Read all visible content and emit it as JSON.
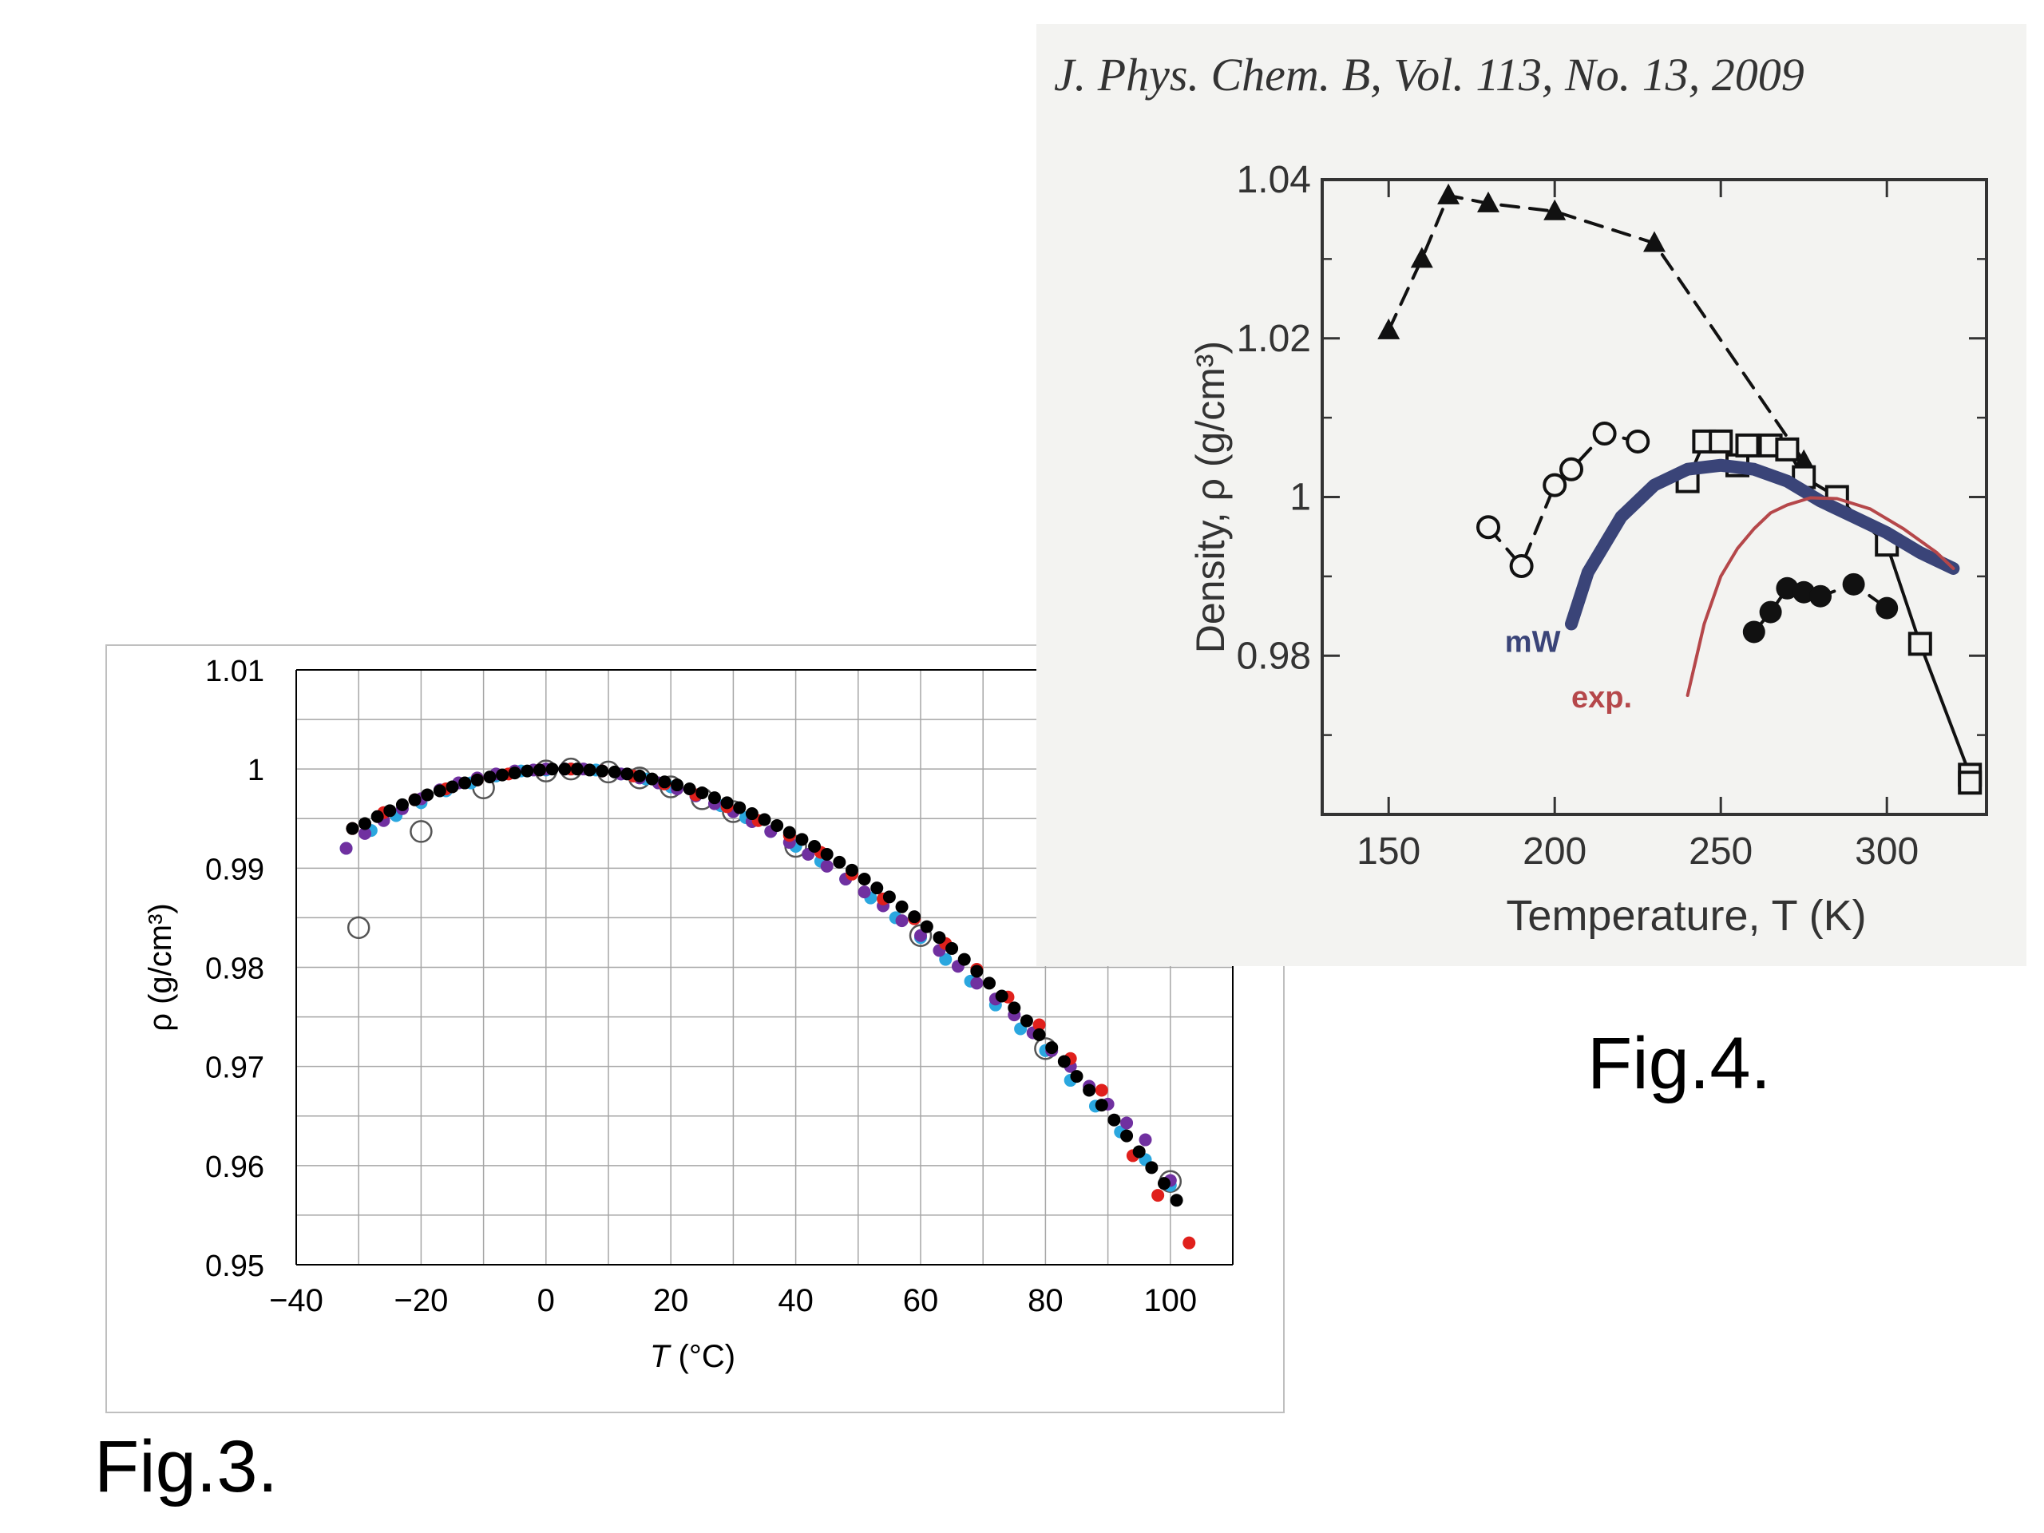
{
  "captions": {
    "fig3": "Fig.3.",
    "fig4": "Fig.4."
  },
  "journal_header": "J. Phys. Chem. B, Vol. 113, No. 13, 2009",
  "chart_data": [
    {
      "type": "scatter",
      "xlabel_var": "T",
      "xlabel_unit": " (°C)",
      "ylabel": "ρ (g/cm³)",
      "xlim": [
        -40,
        110
      ],
      "ylim": [
        0.95,
        1.01
      ],
      "x_ticks": [
        -40,
        -20,
        0,
        20,
        40,
        60,
        80,
        100
      ],
      "x_tick_labels": [
        "−40",
        "−20",
        "0",
        "20",
        "40",
        "60",
        "80",
        "100"
      ],
      "y_ticks": [
        0.95,
        0.96,
        0.97,
        0.98,
        0.99,
        1,
        1.01
      ],
      "y_tick_labels": [
        "0.95",
        "0.96",
        "0.97",
        "0.98",
        "0.99",
        "1",
        "1.01"
      ],
      "grid": true,
      "colors": {
        "red": "#e0201c",
        "black": "#000000",
        "cyan": "#2aa7df",
        "purple": "#7030a0",
        "open": "#555555"
      },
      "series": [
        {
          "marker": "open-circle",
          "color": "open",
          "x": [
            -30,
            -20,
            -10,
            0,
            4,
            10,
            15,
            20,
            25,
            30,
            40,
            60,
            80,
            100
          ],
          "y": [
            0.984,
            0.9937,
            0.9981,
            0.9998,
            1.0,
            0.9997,
            0.9991,
            0.9982,
            0.997,
            0.9957,
            0.9922,
            0.9832,
            0.9718,
            0.9584
          ]
        },
        {
          "marker": "filled",
          "color": "cyan",
          "x": [
            -32,
            -28,
            -24,
            -20,
            -16,
            -12,
            -8,
            -4,
            0,
            4,
            8,
            12,
            16,
            20,
            24,
            28,
            32,
            36,
            40,
            44,
            48,
            52,
            56,
            60,
            64,
            68,
            72,
            76,
            80,
            84,
            88,
            92,
            96,
            100
          ],
          "y": [
            0.992,
            0.9938,
            0.9953,
            0.9966,
            0.9978,
            0.9986,
            0.9993,
            0.9998,
            0.9999,
            1.0,
            0.9999,
            0.9995,
            0.999,
            0.9982,
            0.9973,
            0.9963,
            0.9951,
            0.9937,
            0.9922,
            0.9907,
            0.9889,
            0.987,
            0.985,
            0.983,
            0.9808,
            0.9786,
            0.9762,
            0.9738,
            0.9716,
            0.9686,
            0.966,
            0.9634,
            0.9606,
            0.958
          ]
        },
        {
          "marker": "filled",
          "color": "purple",
          "x": [
            -32,
            -29,
            -26,
            -23,
            -20,
            -17,
            -14,
            -11,
            -8,
            -5,
            -2,
            0,
            3,
            6,
            9,
            12,
            15,
            18,
            21,
            24,
            27,
            30,
            33,
            36,
            39,
            42,
            45,
            48,
            51,
            54,
            57,
            60,
            63,
            66,
            69,
            72,
            75,
            78,
            81,
            84,
            87,
            90,
            93,
            96,
            100
          ],
          "y": [
            0.992,
            0.9935,
            0.9948,
            0.996,
            0.997,
            0.9979,
            0.9986,
            0.9991,
            0.9995,
            0.9998,
            0.9999,
            1.0,
            1.0,
            1.0,
            0.9998,
            0.9995,
            0.9991,
            0.9986,
            0.998,
            0.9973,
            0.9965,
            0.9957,
            0.9947,
            0.9937,
            0.9926,
            0.9914,
            0.9902,
            0.9889,
            0.9876,
            0.9862,
            0.9847,
            0.9832,
            0.9817,
            0.9801,
            0.9784,
            0.9768,
            0.9752,
            0.9734,
            0.9716,
            0.97,
            0.968,
            0.9662,
            0.9643,
            0.9626,
            0.9585
          ]
        },
        {
          "marker": "filled",
          "color": "red",
          "x": [
            -31,
            -26,
            -21,
            -16,
            -11,
            -6,
            -1,
            4,
            9,
            14,
            19,
            24,
            29,
            34,
            39,
            44,
            49,
            54,
            59,
            64,
            69,
            74,
            79,
            84,
            89,
            94,
            98,
            103
          ],
          "y": [
            0.994,
            0.9956,
            0.9969,
            0.998,
            0.9989,
            0.9995,
            0.9999,
            1.0,
            0.9998,
            0.9993,
            0.9985,
            0.9974,
            0.9962,
            0.9948,
            0.9933,
            0.9916,
            0.9894,
            0.9869,
            0.9849,
            0.9824,
            0.9798,
            0.977,
            0.9742,
            0.9708,
            0.9676,
            0.961,
            0.957,
            0.9522
          ]
        },
        {
          "marker": "filled",
          "color": "black",
          "x": [
            -31,
            -29,
            -27,
            -25,
            -23,
            -21,
            -19,
            -17,
            -15,
            -13,
            -11,
            -9,
            -7,
            -5,
            -3,
            -1,
            1,
            3,
            5,
            7,
            9,
            11,
            13,
            15,
            17,
            19,
            21,
            23,
            25,
            27,
            29,
            31,
            33,
            35,
            37,
            39,
            41,
            43,
            45,
            47,
            49,
            51,
            53,
            55,
            57,
            59,
            61,
            63,
            65,
            67,
            69,
            71,
            73,
            75,
            77,
            79,
            81,
            83,
            85,
            87,
            89,
            91,
            93,
            95,
            97,
            99,
            101
          ],
          "y": [
            0.994,
            0.9945,
            0.9952,
            0.9958,
            0.9964,
            0.9969,
            0.9974,
            0.9978,
            0.9982,
            0.9986,
            0.9989,
            0.9992,
            0.9994,
            0.9996,
            0.9998,
            0.9999,
            1.0,
            1.0,
            1.0,
            0.9999,
            0.9998,
            0.9997,
            0.9995,
            0.9993,
            0.999,
            0.9987,
            0.9984,
            0.998,
            0.9976,
            0.9971,
            0.9966,
            0.9961,
            0.9955,
            0.9949,
            0.9943,
            0.9936,
            0.9929,
            0.9922,
            0.9914,
            0.9906,
            0.9898,
            0.9889,
            0.988,
            0.9871,
            0.9861,
            0.9851,
            0.9841,
            0.983,
            0.9819,
            0.9808,
            0.9796,
            0.9784,
            0.9771,
            0.9759,
            0.9746,
            0.9732,
            0.9719,
            0.9705,
            0.969,
            0.9676,
            0.9661,
            0.9646,
            0.963,
            0.9614,
            0.9598,
            0.9582,
            0.9565
          ]
        }
      ]
    },
    {
      "type": "line",
      "xlabel": "Temperature, T (K)",
      "ylabel": "Density, ρ (g/cm³)",
      "xlim": [
        130,
        330
      ],
      "ylim": [
        0.96,
        1.04
      ],
      "x_ticks": [
        150,
        200,
        250,
        300
      ],
      "y_ticks": [
        0.98,
        1,
        1.02,
        1.04
      ],
      "y_tick_labels": [
        "0.98",
        "1",
        "1.02",
        "1.04"
      ],
      "grid": false,
      "annotations": [
        "mW",
        "exp."
      ],
      "colors": {
        "mW": "#3a4478",
        "exp": "#b5474a",
        "black": "#111111",
        "axis": "#333333"
      },
      "series": [
        {
          "marker": "filled-triangle",
          "line": "dashed",
          "x": [
            150,
            160,
            168,
            180,
            200,
            230,
            275
          ],
          "y": [
            1.021,
            1.03,
            1.038,
            1.037,
            1.036,
            1.032,
            1.0045
          ]
        },
        {
          "marker": "open-circle",
          "line": "dashed",
          "x": [
            180,
            190,
            200,
            205,
            215,
            225
          ],
          "y": [
            0.9962,
            0.9913,
            1.0015,
            1.0035,
            1.008,
            1.007
          ]
        },
        {
          "marker": "open-square",
          "line": "solid",
          "x": [
            240,
            245,
            250,
            255,
            258,
            265,
            270,
            275,
            285,
            300,
            310,
            325,
            325
          ],
          "y": [
            1.002,
            1.007,
            1.007,
            1.004,
            1.0065,
            1.0065,
            1.006,
            1.0025,
            1.0,
            0.994,
            0.9815,
            0.965,
            0.964
          ]
        },
        {
          "marker": "filled-circle",
          "line": "dashed",
          "x": [
            260,
            265,
            270,
            275,
            280,
            290,
            300
          ],
          "y": [
            0.983,
            0.9855,
            0.9885,
            0.988,
            0.9875,
            0.989,
            0.986
          ]
        },
        {
          "marker": "none",
          "line": "thick",
          "color": "mW",
          "x": [
            205,
            210,
            220,
            230,
            240,
            250,
            260,
            270,
            280,
            290,
            300,
            310,
            320
          ],
          "y": [
            0.984,
            0.9905,
            0.9975,
            1.0015,
            1.0035,
            1.004,
            1.0035,
            1.002,
            0.9995,
            0.9975,
            0.9955,
            0.993,
            0.991
          ]
        },
        {
          "marker": "none",
          "line": "solid",
          "color": "exp",
          "x": [
            240,
            245,
            250,
            255,
            260,
            265,
            270,
            277,
            285,
            295,
            305,
            315,
            320
          ],
          "y": [
            0.975,
            0.984,
            0.99,
            0.9935,
            0.996,
            0.998,
            0.999,
            0.9999,
            0.9998,
            0.9985,
            0.996,
            0.993,
            0.991
          ]
        }
      ]
    }
  ]
}
